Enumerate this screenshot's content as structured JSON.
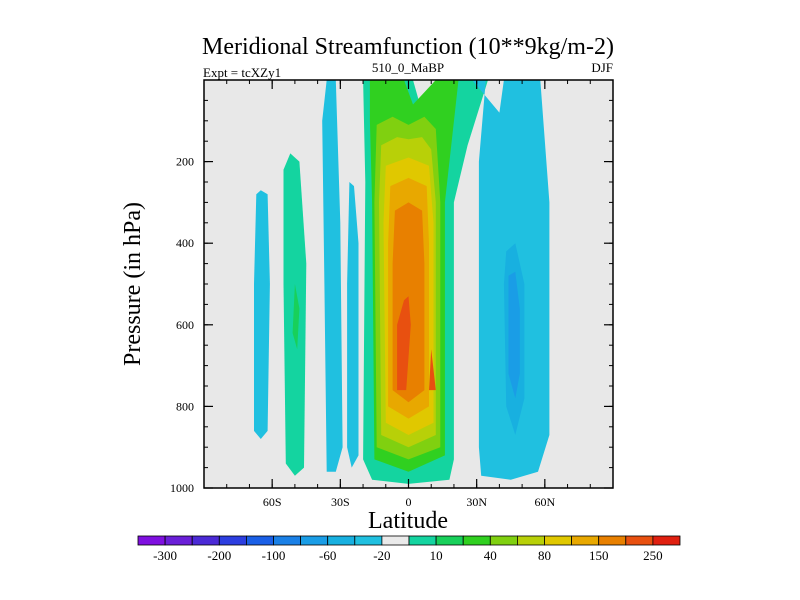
{
  "chart_data": {
    "type": "heatmap",
    "title": "Meridional Streamfunction (10**9kg/m-2)",
    "subtitle_left": "Expt = tcXZy1",
    "subtitle_center": "510_0_MaBP",
    "subtitle_right": "DJF",
    "xlabel": "Latitude",
    "ylabel": "Pressure (in hPa)",
    "xlim": [
      -90,
      90
    ],
    "ylim": [
      0,
      1000
    ],
    "y_inverted": true,
    "x_ticks": [
      {
        "value": -60,
        "label": "60S"
      },
      {
        "value": -30,
        "label": "30S"
      },
      {
        "value": 0,
        "label": "0"
      },
      {
        "value": 30,
        "label": "30N"
      },
      {
        "value": 60,
        "label": "60N"
      }
    ],
    "y_ticks": [
      {
        "value": 200,
        "label": "200"
      },
      {
        "value": 400,
        "label": "400"
      },
      {
        "value": 600,
        "label": "600"
      },
      {
        "value": 800,
        "label": "800"
      },
      {
        "value": 1000,
        "label": "1000"
      }
    ],
    "colorbar": {
      "levels": [
        -300,
        -250,
        -200,
        -150,
        -100,
        -80,
        -60,
        -40,
        -20,
        -10,
        10,
        20,
        40,
        60,
        80,
        100,
        150,
        200,
        250,
        300
      ],
      "labels": [
        {
          "after_box": 1,
          "text": "-300"
        },
        {
          "after_box": 3,
          "text": "-200"
        },
        {
          "after_box": 5,
          "text": "-100"
        },
        {
          "after_box": 7,
          "text": "-60"
        },
        {
          "after_box": 9,
          "text": "-20"
        },
        {
          "after_box": 11,
          "text": "10"
        },
        {
          "after_box": 13,
          "text": "40"
        },
        {
          "after_box": 15,
          "text": "80"
        },
        {
          "after_box": 17,
          "text": "150"
        },
        {
          "after_box": 19,
          "text": "250"
        }
      ],
      "colors": [
        "#7f10e0",
        "#6a1fd8",
        "#4b2ad6",
        "#2c3ee0",
        "#1a5fe6",
        "#1a80e6",
        "#1a9de6",
        "#18b0e0",
        "#20c0e0",
        "#eaeaea",
        "#14d4a0",
        "#18d05a",
        "#30d020",
        "#80d010",
        "#b8d008",
        "#e0c800",
        "#e8a800",
        "#e88000",
        "#e85010",
        "#e02010"
      ]
    },
    "regions": [
      {
        "name": "neg-band-60s",
        "color": "#20c0e0",
        "points": [
          [
            -65,
            270
          ],
          [
            -62,
            280
          ],
          [
            -61,
            500
          ],
          [
            -62,
            860
          ],
          [
            -65,
            880
          ],
          [
            -68,
            860
          ],
          [
            -68,
            500
          ],
          [
            -67,
            280
          ]
        ]
      },
      {
        "name": "neg-band-50s",
        "color": "#14d4a0",
        "points": [
          [
            -52,
            180
          ],
          [
            -48,
            200
          ],
          [
            -45,
            450
          ],
          [
            -46,
            950
          ],
          [
            -50,
            970
          ],
          [
            -54,
            940
          ],
          [
            -55,
            500
          ],
          [
            -55,
            220
          ]
        ]
      },
      {
        "name": "neg-band-50s-inner",
        "color": "#18d05a",
        "points": [
          [
            -50,
            500
          ],
          [
            -48,
            560
          ],
          [
            -49,
            660
          ],
          [
            -51,
            620
          ]
        ]
      },
      {
        "name": "neg-band-35s",
        "color": "#20c0e0",
        "points": [
          [
            -36,
            0
          ],
          [
            -32,
            0
          ],
          [
            -30,
            350
          ],
          [
            -29,
            900
          ],
          [
            -32,
            960
          ],
          [
            -36,
            960
          ],
          [
            -37,
            500
          ],
          [
            -38,
            100
          ]
        ]
      },
      {
        "name": "neg-band-28s",
        "color": "#20c0e0",
        "points": [
          [
            -26,
            250
          ],
          [
            -24,
            260
          ],
          [
            -22,
            400
          ],
          [
            -22,
            920
          ],
          [
            -25,
            950
          ],
          [
            -27,
            900
          ],
          [
            -27,
            500
          ]
        ]
      },
      {
        "name": "hadley-10",
        "color": "#14d4a0",
        "points": [
          [
            -20,
            0
          ],
          [
            2,
            0
          ],
          [
            5,
            60
          ],
          [
            20,
            0
          ],
          [
            35,
            0
          ],
          [
            26,
            160
          ],
          [
            20,
            300
          ],
          [
            20,
            930
          ],
          [
            18,
            980
          ],
          [
            0,
            990
          ],
          [
            -16,
            980
          ],
          [
            -20,
            930
          ],
          [
            -19,
            250
          ]
        ]
      },
      {
        "name": "hadley-20",
        "color": "#30d020",
        "points": [
          [
            -17,
            0
          ],
          [
            -2,
            0
          ],
          [
            2,
            60
          ],
          [
            12,
            0
          ],
          [
            22,
            0
          ],
          [
            19,
            150
          ],
          [
            16,
            300
          ],
          [
            16,
            920
          ],
          [
            0,
            960
          ],
          [
            -15,
            930
          ],
          [
            -16,
            300
          ],
          [
            -17,
            100
          ]
        ]
      },
      {
        "name": "hadley-40",
        "color": "#80d010",
        "points": [
          [
            -14,
            110
          ],
          [
            -7,
            90
          ],
          [
            0,
            110
          ],
          [
            7,
            90
          ],
          [
            12,
            120
          ],
          [
            14,
            300
          ],
          [
            14,
            900
          ],
          [
            0,
            930
          ],
          [
            -14,
            900
          ],
          [
            -15,
            300
          ]
        ]
      },
      {
        "name": "hadley-60",
        "color": "#b8d008",
        "points": [
          [
            -12,
            160
          ],
          [
            -5,
            140
          ],
          [
            0,
            145
          ],
          [
            6,
            140
          ],
          [
            10,
            170
          ],
          [
            12,
            300
          ],
          [
            12,
            870
          ],
          [
            0,
            900
          ],
          [
            -12,
            870
          ],
          [
            -13,
            300
          ]
        ]
      },
      {
        "name": "hadley-80",
        "color": "#e0c800",
        "points": [
          [
            -10,
            210
          ],
          [
            0,
            190
          ],
          [
            9,
            210
          ],
          [
            11,
            350
          ],
          [
            11,
            840
          ],
          [
            0,
            870
          ],
          [
            -10,
            840
          ],
          [
            -11,
            350
          ]
        ]
      },
      {
        "name": "hadley-100",
        "color": "#e8a800",
        "points": [
          [
            -8,
            260
          ],
          [
            0,
            240
          ],
          [
            8,
            260
          ],
          [
            9,
            400
          ],
          [
            9,
            800
          ],
          [
            0,
            830
          ],
          [
            -9,
            800
          ],
          [
            -9,
            400
          ]
        ]
      },
      {
        "name": "hadley-150",
        "color": "#e88000",
        "points": [
          [
            -6,
            320
          ],
          [
            0,
            300
          ],
          [
            6,
            320
          ],
          [
            7,
            450
          ],
          [
            7,
            760
          ],
          [
            0,
            790
          ],
          [
            -7,
            760
          ],
          [
            -7,
            450
          ]
        ]
      },
      {
        "name": "hadley-200",
        "color": "#e85010",
        "points": [
          [
            -2,
            540
          ],
          [
            0,
            530
          ],
          [
            1,
            600
          ],
          [
            -1,
            760
          ],
          [
            -5,
            760
          ],
          [
            -5,
            600
          ]
        ]
      },
      {
        "name": "hadley-200-b",
        "color": "#e85010",
        "points": [
          [
            10,
            660
          ],
          [
            12,
            760
          ],
          [
            9,
            760
          ]
        ]
      },
      {
        "name": "ferrel-n-10",
        "color": "#20c0e0",
        "points": [
          [
            28,
            0
          ],
          [
            34,
            0
          ],
          [
            31,
            200
          ],
          [
            31,
            900
          ],
          [
            32,
            970
          ],
          [
            45,
            980
          ],
          [
            57,
            960
          ],
          [
            62,
            870
          ],
          [
            62,
            300
          ],
          [
            58,
            0
          ],
          [
            42,
            0
          ],
          [
            40,
            80
          ]
        ]
      },
      {
        "name": "ferrel-n-20",
        "color": "#18b0e0",
        "points": [
          [
            43,
            420
          ],
          [
            47,
            400
          ],
          [
            51,
            500
          ],
          [
            51,
            780
          ],
          [
            47,
            870
          ],
          [
            43,
            800
          ],
          [
            42,
            500
          ]
        ]
      },
      {
        "name": "ferrel-n-40",
        "color": "#1a9de6",
        "points": [
          [
            44,
            480
          ],
          [
            47,
            470
          ],
          [
            49,
            560
          ],
          [
            49,
            720
          ],
          [
            47,
            780
          ],
          [
            44,
            720
          ],
          [
            44,
            560
          ]
        ]
      }
    ]
  }
}
